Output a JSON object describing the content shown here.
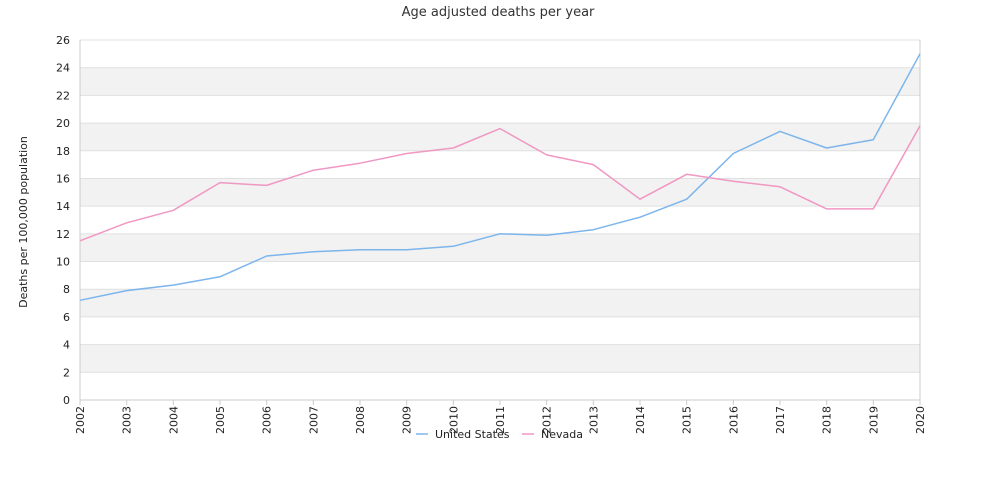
{
  "chart_data": {
    "type": "line",
    "title": "Age adjusted deaths per year",
    "xlabel": "",
    "ylabel": "Deaths per 100,000 population",
    "x": [
      "2002",
      "2003",
      "2004",
      "2005",
      "2006",
      "2007",
      "2008",
      "2009",
      "2010",
      "2011",
      "2012",
      "2013",
      "2014",
      "2015",
      "2016",
      "2017",
      "2018",
      "2019",
      "2020"
    ],
    "ylim": [
      0,
      26
    ],
    "yticks": [
      0,
      2,
      4,
      6,
      8,
      10,
      12,
      14,
      16,
      18,
      20,
      22,
      24,
      26
    ],
    "grid": "horizontal alternating bands",
    "legend_position": "bottom-center",
    "series": [
      {
        "name": "United States",
        "color": "#7cb5ec",
        "values": [
          7.2,
          7.9,
          8.3,
          8.9,
          10.4,
          10.7,
          10.85,
          10.85,
          11.1,
          12.0,
          11.9,
          12.3,
          13.2,
          14.5,
          17.8,
          19.4,
          18.2,
          18.8,
          25.0
        ]
      },
      {
        "name": "Nevada",
        "color": "#f097c2",
        "values": [
          11.5,
          12.8,
          13.7,
          15.7,
          15.5,
          16.6,
          17.1,
          17.8,
          18.2,
          19.6,
          17.7,
          17.0,
          14.5,
          16.3,
          15.8,
          15.4,
          13.8,
          13.8,
          19.8
        ]
      }
    ]
  },
  "colors": {
    "band": "#f2f2f2",
    "gridline": "#e0e0e0",
    "axis": "#cccccc"
  }
}
